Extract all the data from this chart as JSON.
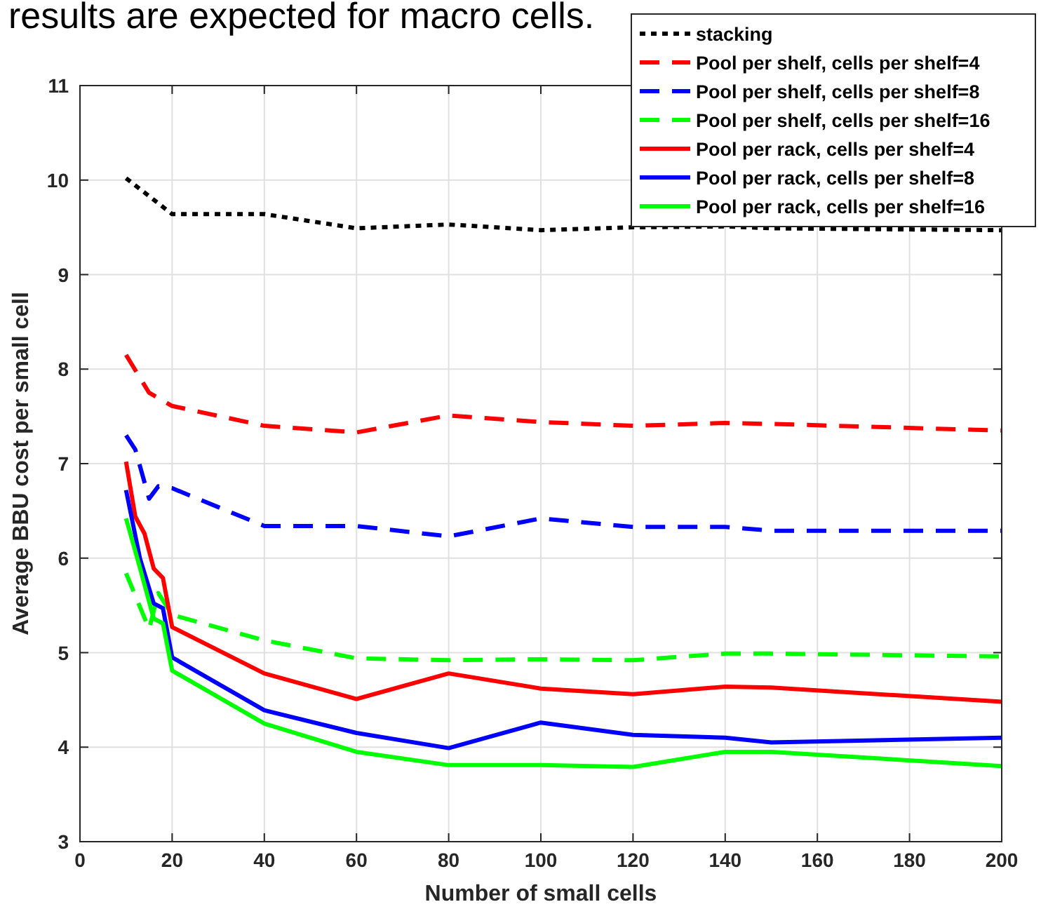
{
  "chart_data": {
    "type": "line",
    "xlabel": "Number of small cells",
    "ylabel": "Average BBU cost per small cell",
    "annotations": [
      "results are expected for macro cells."
    ],
    "xlim": [
      0,
      200
    ],
    "xticks": [
      0,
      20,
      40,
      60,
      80,
      100,
      120,
      140,
      160,
      180,
      200
    ],
    "ylim": [
      3,
      11
    ],
    "yticks": [
      3,
      4,
      5,
      6,
      7,
      8,
      9,
      10,
      11
    ],
    "grid": true,
    "legend": "top right",
    "series": [
      {
        "name": "stacking",
        "color": "#000000",
        "line_style": "dotted",
        "x": [
          10,
          20,
          40,
          60,
          80,
          100,
          120,
          140,
          150,
          200
        ],
        "values": [
          10.02,
          9.64,
          9.64,
          9.49,
          9.53,
          9.47,
          9.5,
          9.51,
          9.49,
          9.47
        ]
      },
      {
        "name": "Pool per shelf, cells per shelf=4",
        "color": "#ff0000",
        "line_style": "dashed",
        "x": [
          10,
          15,
          20,
          40,
          60,
          80,
          100,
          120,
          140,
          150,
          200
        ],
        "values": [
          8.15,
          7.75,
          7.61,
          7.4,
          7.33,
          7.51,
          7.44,
          7.4,
          7.43,
          7.42,
          7.35
        ]
      },
      {
        "name": "Pool per shelf, cells per shelf=8",
        "color": "#0000ff",
        "line_style": "dashed",
        "x": [
          10,
          12,
          15,
          17,
          20,
          40,
          60,
          80,
          100,
          120,
          140,
          150,
          200
        ],
        "values": [
          7.3,
          7.15,
          6.63,
          6.76,
          6.74,
          6.34,
          6.34,
          6.23,
          6.42,
          6.33,
          6.33,
          6.29,
          6.29
        ]
      },
      {
        "name": "Pool per shelf, cells per shelf=16",
        "color": "#00ff00",
        "line_style": "dashed",
        "x": [
          10,
          15,
          17,
          20,
          40,
          60,
          80,
          100,
          120,
          140,
          150,
          200
        ],
        "values": [
          5.84,
          5.25,
          5.63,
          5.4,
          5.13,
          4.94,
          4.92,
          4.93,
          4.92,
          4.99,
          4.99,
          4.96
        ]
      },
      {
        "name": "Pool per rack, cells per shelf=4",
        "color": "#ff0000",
        "line_style": "solid",
        "x": [
          10,
          12,
          14,
          16,
          18,
          20,
          40,
          60,
          80,
          100,
          120,
          140,
          150,
          200
        ],
        "values": [
          7.02,
          6.44,
          6.26,
          5.89,
          5.79,
          5.27,
          4.78,
          4.51,
          4.78,
          4.62,
          4.56,
          4.64,
          4.63,
          4.48
        ]
      },
      {
        "name": "Pool per rack, cells per shelf=8",
        "color": "#0000ff",
        "line_style": "solid",
        "x": [
          10,
          13,
          16,
          18,
          20,
          40,
          60,
          80,
          100,
          120,
          140,
          150,
          200
        ],
        "values": [
          6.72,
          6.0,
          5.52,
          5.47,
          4.95,
          4.39,
          4.15,
          3.99,
          4.26,
          4.13,
          4.1,
          4.05,
          4.1
        ]
      },
      {
        "name": "Pool per rack, cells per shelf=16",
        "color": "#00ff00",
        "line_style": "solid",
        "x": [
          10,
          13,
          16,
          18,
          20,
          40,
          60,
          80,
          100,
          120,
          140,
          150,
          200
        ],
        "values": [
          6.42,
          5.9,
          5.36,
          5.31,
          4.81,
          4.25,
          3.95,
          3.81,
          3.81,
          3.79,
          3.95,
          3.95,
          3.8
        ]
      }
    ]
  }
}
